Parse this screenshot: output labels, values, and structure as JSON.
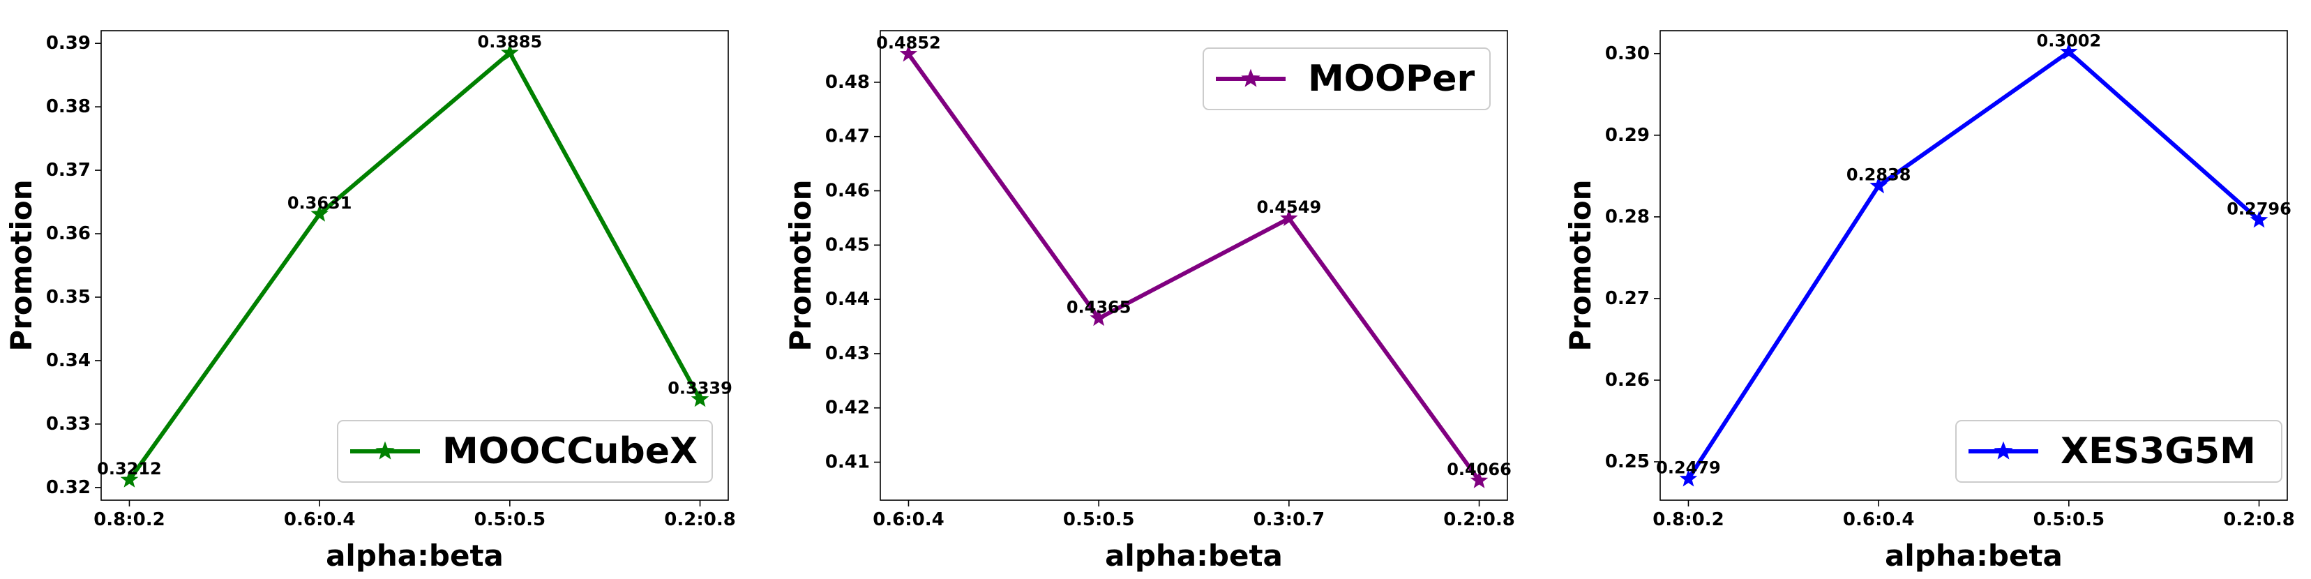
{
  "chart_data": [
    {
      "type": "line",
      "xlabel": "alpha:beta",
      "ylabel": "Promotion",
      "categories": [
        "0.8:0.2",
        "0.6:0.4",
        "0.5:0.5",
        "0.2:0.8"
      ],
      "series": [
        {
          "name": "MOOCCubeX",
          "values": [
            0.3212,
            0.3631,
            0.3885,
            0.3339
          ],
          "labels": [
            "0.3212",
            "0.3631",
            "0.3885",
            "0.3339"
          ],
          "color": "#008000",
          "marker": "star"
        }
      ],
      "ylim": [
        0.318,
        0.392
      ],
      "yticks": [
        0.32,
        0.33,
        0.34,
        0.35,
        0.36,
        0.37,
        0.38,
        0.39
      ],
      "ytick_labels": [
        "0.32",
        "0.33",
        "0.34",
        "0.35",
        "0.36",
        "0.37",
        "0.38",
        "0.39"
      ],
      "legend_position": "lower-right",
      "grid": false
    },
    {
      "type": "line",
      "xlabel": "alpha:beta",
      "ylabel": "Promotion",
      "categories": [
        "0.6:0.4",
        "0.5:0.5",
        "0.3:0.7",
        "0.2:0.8"
      ],
      "series": [
        {
          "name": "MOOPer",
          "values": [
            0.4852,
            0.4365,
            0.4549,
            0.4066
          ],
          "labels": [
            "0.4852",
            "0.4365",
            "0.4549",
            "0.4066"
          ],
          "color": "#800080",
          "marker": "star"
        }
      ],
      "ylim": [
        0.403,
        0.4895
      ],
      "yticks": [
        0.41,
        0.42,
        0.43,
        0.44,
        0.45,
        0.46,
        0.47,
        0.48
      ],
      "ytick_labels": [
        "0.41",
        "0.42",
        "0.43",
        "0.44",
        "0.45",
        "0.46",
        "0.47",
        "0.48"
      ],
      "legend_position": "upper-right",
      "grid": false
    },
    {
      "type": "line",
      "xlabel": "alpha:beta",
      "ylabel": "Promotion",
      "categories": [
        "0.8:0.2",
        "0.6:0.4",
        "0.5:0.5",
        "0.2:0.8"
      ],
      "series": [
        {
          "name": "XES3G5M",
          "values": [
            0.2479,
            0.2838,
            0.3002,
            0.2796
          ],
          "labels": [
            "0.2479",
            "0.2838",
            "0.3002",
            "0.2796"
          ],
          "color": "#0000ff",
          "marker": "star"
        }
      ],
      "ylim": [
        0.2453,
        0.3028
      ],
      "yticks": [
        0.25,
        0.26,
        0.27,
        0.28,
        0.29,
        0.3
      ],
      "ytick_labels": [
        "0.25",
        "0.26",
        "0.27",
        "0.28",
        "0.29",
        "0.30"
      ],
      "legend_position": "lower-right",
      "grid": false
    }
  ]
}
